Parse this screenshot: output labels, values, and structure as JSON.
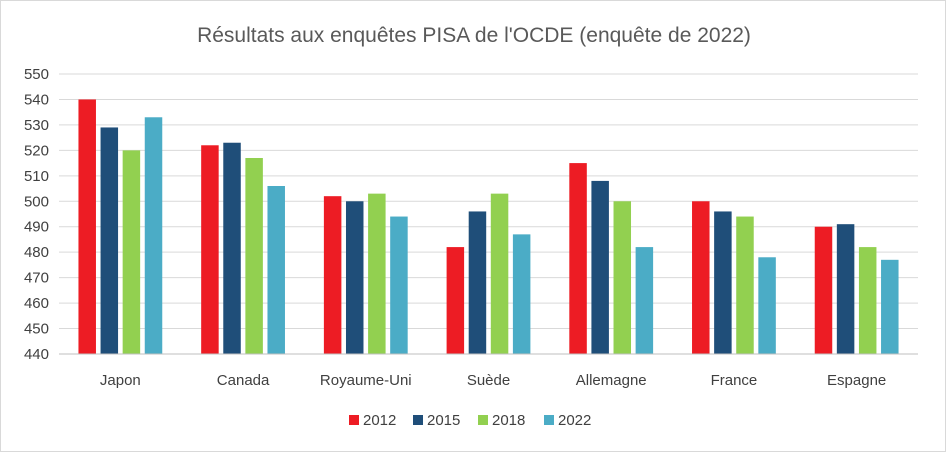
{
  "chart_data": {
    "type": "bar",
    "title": "Résultats aux enquêtes  PISA de l'OCDE (enquête de 2022)",
    "categories": [
      "Japon",
      "Canada",
      "Royaume-Uni",
      "Suède",
      "Allemagne",
      "France",
      "Espagne"
    ],
    "series": [
      {
        "name": "2012",
        "color": "#ed1c24",
        "values": [
          540,
          522,
          502,
          482,
          515,
          500,
          490
        ]
      },
      {
        "name": "2015",
        "color": "#1f4e79",
        "values": [
          529,
          523,
          500,
          496,
          508,
          496,
          491
        ]
      },
      {
        "name": "2018",
        "color": "#92d050",
        "values": [
          520,
          517,
          503,
          503,
          500,
          494,
          482
        ]
      },
      {
        "name": "2022",
        "color": "#4bacc6",
        "values": [
          533,
          506,
          494,
          487,
          482,
          478,
          477
        ]
      }
    ],
    "ylim": [
      440,
      550
    ],
    "yticks": [
      440,
      450,
      460,
      470,
      480,
      490,
      500,
      510,
      520,
      530,
      540,
      550
    ],
    "grid": true,
    "legend_position": "bottom"
  }
}
